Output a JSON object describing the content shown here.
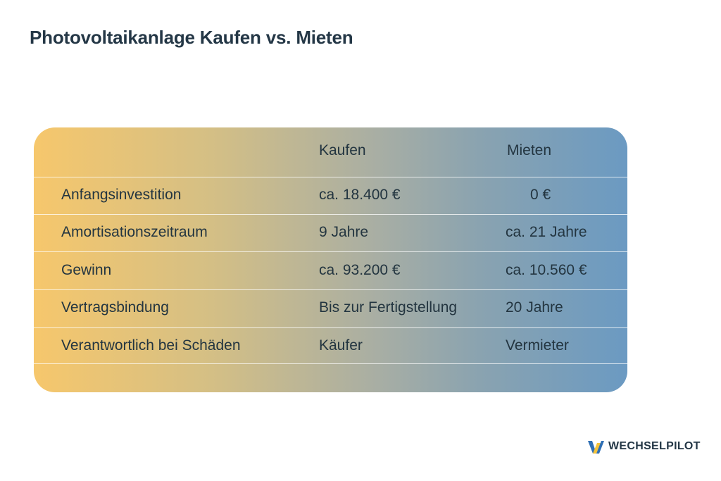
{
  "title": "Photovoltaikanlage Kaufen vs. Mieten",
  "table": {
    "headers": [
      "",
      "Kaufen",
      "Mieten"
    ],
    "rows": [
      [
        "Anfangsinvestition",
        "ca. 18.400 €",
        "0 €"
      ],
      [
        "Amortisationszeitraum",
        "9 Jahre",
        "ca. 21 Jahre"
      ],
      [
        "Gewinn",
        "ca. 93.200 €",
        "ca. 10.560 €"
      ],
      [
        "Vertragsbindung",
        "Bis zur Fertigstellung",
        "20 Jahre"
      ],
      [
        "Verantwortlich bei Schäden",
        "Käufer",
        "Vermieter"
      ]
    ]
  },
  "logo": {
    "icon": "wechselpilot-logo-icon",
    "text": "WECHSELPILOT"
  },
  "colors": {
    "title": "#243746",
    "gradient_start": "#f6c76c",
    "gradient_end": "#6b9ac2",
    "logo_blue": "#2f6fb5",
    "logo_yellow": "#f5c33b"
  }
}
